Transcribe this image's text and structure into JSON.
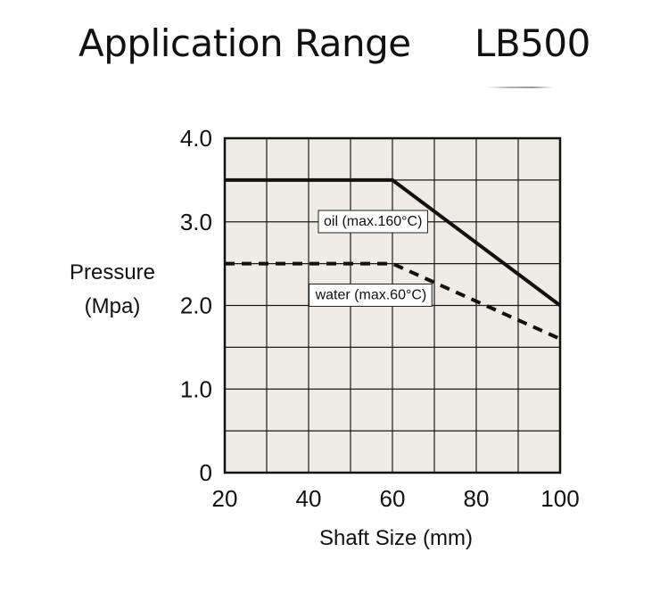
{
  "header": {
    "title": "Application Range",
    "model": "LB500"
  },
  "chart_data": {
    "type": "line",
    "title": "Application Range",
    "xlabel": "Shaft Size (mm)",
    "ylabel_lines": [
      "Pressure",
      "(Mpa)"
    ],
    "xlim": [
      20,
      100
    ],
    "ylim": [
      0,
      4.0
    ],
    "x_ticks": [
      20,
      40,
      60,
      80,
      100
    ],
    "x_tick_labels": [
      "20",
      "40",
      "60",
      "80",
      "100"
    ],
    "y_ticks": [
      0,
      1.0,
      2.0,
      3.0,
      4.0
    ],
    "y_tick_labels": [
      "0",
      "1.0",
      "2.0",
      "3.0",
      "4.0"
    ],
    "x_grid_step": 10,
    "y_grid_step": 0.5,
    "grid": true,
    "plot_background": "#efebe6",
    "series": [
      {
        "name": "oil (max.160°C)",
        "style": "solid",
        "color": "#111111",
        "points": [
          [
            20,
            3.5
          ],
          [
            60,
            3.5
          ],
          [
            100,
            2.0
          ]
        ],
        "label_anchor": [
          30,
          3.0
        ]
      },
      {
        "name": "water (max.60°C)",
        "style": "dashed",
        "color": "#111111",
        "points": [
          [
            20,
            2.5
          ],
          [
            60,
            2.5
          ],
          [
            100,
            1.6
          ]
        ],
        "label_anchor": [
          28,
          2.12
        ]
      }
    ]
  }
}
